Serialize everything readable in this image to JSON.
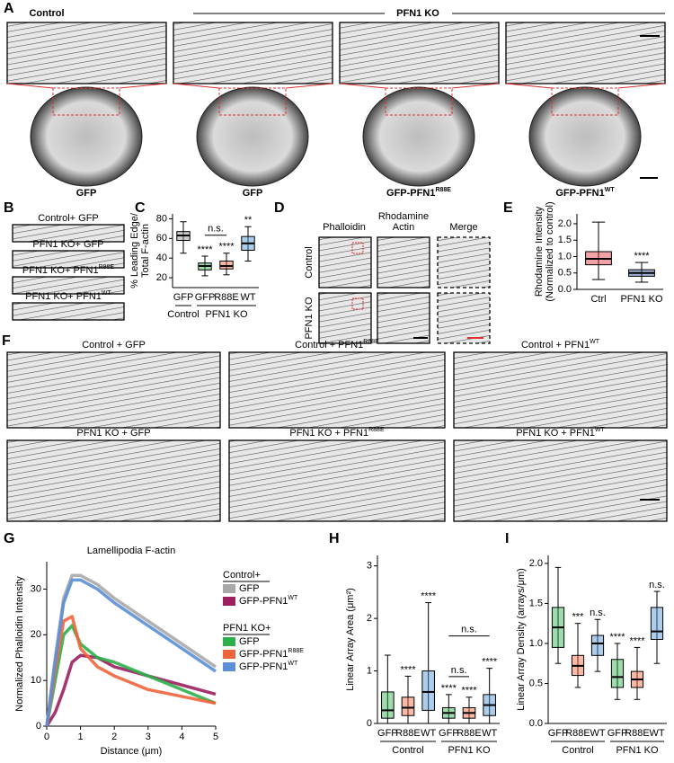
{
  "figure": {
    "A": {
      "label": "A",
      "control": "Control",
      "ko": "PFN1 KO",
      "captions": [
        {
          "text": "GFP"
        },
        {
          "text": "GFP"
        },
        {
          "text": "GFP-PFN1",
          "sup": "R88E"
        },
        {
          "text": "GFP-PFN1",
          "sup": "WT"
        }
      ]
    },
    "B": {
      "label": "B",
      "rows": [
        {
          "text": "Control+ GFP"
        },
        {
          "text": "PFN1 KO+ GFP"
        },
        {
          "text": "PFN1 KO+ PFN1",
          "sup": "R88E"
        },
        {
          "text": "PFN1 KO+ PFN1",
          "sup": "WT"
        }
      ]
    },
    "D": {
      "label": "D",
      "columns": [
        [
          "Phalloidin"
        ],
        [
          "Rhodamine",
          "Actin"
        ],
        [
          "Merge"
        ]
      ],
      "rows": [
        "Control",
        "PFN1 KO"
      ]
    },
    "F": {
      "label": "F",
      "images": [
        {
          "text": "Control + GFP"
        },
        {
          "text": "Control + PFN1",
          "sup": "R88E"
        },
        {
          "text": "Control + PFN1",
          "sup": "WT"
        },
        {
          "text": "PFN1 KO + GFP"
        },
        {
          "text": "PFN1 KO + PFN1",
          "sup": "R88E"
        },
        {
          "text": "PFN1 KO + PFN1",
          "sup": "WT"
        }
      ]
    }
  },
  "chart_data": [
    {
      "panel": "C",
      "type": "box",
      "ylabel": [
        "% Leading Edge/",
        "Total F-actin"
      ],
      "ylim": [
        10,
        85
      ],
      "yticks": [
        20,
        40,
        60,
        80
      ],
      "groups": [
        {
          "name": "Control",
          "boxes": [
            {
              "name": "GFP",
              "color": "#8c8c8c",
              "min": 45,
              "q1": 58,
              "median": 63,
              "q3": 67,
              "max": 77
            }
          ]
        },
        {
          "name": "PFN1 KO",
          "boxes": [
            {
              "name": "GFP",
              "color": "#2db04a",
              "min": 22,
              "q1": 28,
              "median": 32,
              "q3": 35,
              "max": 42,
              "sig": "****"
            },
            {
              "name": "R88E",
              "color": "#f0643c",
              "min": 23,
              "q1": 29,
              "median": 32,
              "q3": 37,
              "max": 45,
              "sig": "****"
            },
            {
              "name": "WT",
              "color": "#4a90d0",
              "min": 37,
              "q1": 48,
              "median": 55,
              "q3": 62,
              "max": 72,
              "sig": "**"
            }
          ]
        }
      ],
      "brackets": [
        {
          "label": "n.s.",
          "span": [
            1,
            2
          ]
        }
      ]
    },
    {
      "panel": "E",
      "type": "box",
      "ylabel": [
        "Rhodamine Intensity",
        "(Normalized to control)"
      ],
      "ylim": [
        0,
        2.3
      ],
      "yticks": [
        {
          "value": 0,
          "label": "0.0"
        },
        {
          "value": 0.5,
          "label": "0.5"
        },
        {
          "value": 1,
          "label": "1.0"
        },
        {
          "value": 1.5,
          "label": "1.5"
        },
        {
          "value": 2,
          "label": "2.0"
        }
      ],
      "groups": [
        {
          "boxes": [
            {
              "name": "Ctrl",
              "color": "#e0303a",
              "min": 0.3,
              "q1": 0.75,
              "median": 0.93,
              "q3": 1.15,
              "max": 2.05
            },
            {
              "name": "PFN1 KO",
              "color": "#3050a0",
              "min": 0.22,
              "q1": 0.4,
              "median": 0.5,
              "q3": 0.6,
              "max": 0.82,
              "sig": "****"
            }
          ]
        }
      ],
      "brackets": []
    },
    {
      "panel": "G",
      "type": "line",
      "title": "Lamellipodia F-actin",
      "xlabel": "Distance (μm)",
      "ylabel": "Normalized Phalloidin Intensity",
      "xlim": [
        0,
        5
      ],
      "xticks": [
        0,
        1,
        2,
        3,
        4,
        5
      ],
      "ylim": [
        0,
        36
      ],
      "yticks": [
        0,
        10,
        20,
        30
      ],
      "x": [
        0,
        0.25,
        0.5,
        0.75,
        1,
        1.5,
        2,
        3,
        4,
        5
      ],
      "series": [
        {
          "name": "GFP",
          "color": "#a8a8a8",
          "values": [
            0,
            15,
            28,
            33,
            33,
            31,
            28,
            23,
            18,
            13
          ]
        },
        {
          "name": "GFP-PFN1",
          "sup": "WT",
          "color": "#9c1f5e",
          "values": [
            0,
            3,
            8,
            14,
            15.5,
            15,
            13,
            11,
            9,
            7
          ]
        },
        {
          "name": "GFP",
          "color": "#2db04a",
          "values": [
            0,
            10,
            20,
            22,
            18,
            15,
            14,
            11,
            8,
            5
          ]
        },
        {
          "name": "GFP-PFN1",
          "sup": "R88E",
          "color": "#f0643c",
          "values": [
            0,
            12,
            23,
            24,
            17,
            13,
            11,
            8,
            6.5,
            5
          ]
        },
        {
          "name": "GFP-PFN1",
          "sup": "WT",
          "color": "#5b8fd6",
          "values": [
            0,
            14,
            27,
            32,
            32,
            30,
            27,
            22,
            17,
            12
          ]
        }
      ],
      "legend_groups": [
        {
          "name": "Control+",
          "series": [
            0,
            1
          ]
        },
        {
          "name": "PFN1 KO+",
          "series": [
            2,
            3,
            4
          ]
        }
      ]
    },
    {
      "panel": "H",
      "type": "box",
      "ylabel": [
        "Linear Array Area (μm²)"
      ],
      "ylim": [
        0,
        3.2
      ],
      "yticks": [
        0,
        1,
        2,
        3
      ],
      "groups": [
        {
          "name": "Control",
          "boxes": [
            {
              "name": "GFP",
              "color": "#2db04a",
              "min": 0,
              "q1": 0.1,
              "median": 0.25,
              "q3": 0.6,
              "max": 1.3
            },
            {
              "name": "R88E",
              "color": "#f0643c",
              "min": 0,
              "q1": 0.15,
              "median": 0.3,
              "q3": 0.5,
              "max": 0.9,
              "sig": "****"
            },
            {
              "name": "WT",
              "color": "#4a90d0",
              "min": 0,
              "q1": 0.25,
              "median": 0.6,
              "q3": 1,
              "max": 2.3,
              "sig": "****"
            }
          ]
        },
        {
          "name": "PFN1 KO",
          "boxes": [
            {
              "name": "GFP",
              "color": "#2db04a",
              "min": 0,
              "q1": 0.1,
              "median": 0.2,
              "q3": 0.3,
              "max": 0.55,
              "sig": "****"
            },
            {
              "name": "R88E",
              "color": "#f0643c",
              "min": 0,
              "q1": 0.1,
              "median": 0.2,
              "q3": 0.3,
              "max": 0.5,
              "sig": "****"
            },
            {
              "name": "WT",
              "color": "#4a90d0",
              "min": 0,
              "q1": 0.15,
              "median": 0.35,
              "q3": 0.55,
              "max": 1.05,
              "sig": "****"
            }
          ]
        }
      ],
      "brackets": [
        {
          "label": "n.s.",
          "span": [
            3,
            4
          ]
        },
        {
          "label": "n.s.",
          "span": [
            3,
            5
          ]
        }
      ]
    },
    {
      "panel": "I",
      "type": "box",
      "ylabel": [
        "Linear Array Density (arrays/μm)"
      ],
      "ylim": [
        0,
        2.1
      ],
      "yticks": [
        {
          "value": 0,
          "label": "0.0"
        },
        {
          "value": 0.5,
          "label": "0.5"
        },
        {
          "value": 1,
          "label": "1.0"
        },
        {
          "value": 1.5,
          "label": "1.5"
        },
        {
          "value": 2,
          "label": "2.0"
        }
      ],
      "groups": [
        {
          "name": "Control",
          "boxes": [
            {
              "name": "GFP",
              "color": "#2db04a",
              "min": 0.75,
              "q1": 0.95,
              "median": 1.2,
              "q3": 1.45,
              "max": 1.95
            },
            {
              "name": "R88E",
              "color": "#f0643c",
              "min": 0.45,
              "q1": 0.6,
              "median": 0.72,
              "q3": 0.85,
              "max": 1.25,
              "sig": "***"
            },
            {
              "name": "WT",
              "color": "#4a90d0",
              "min": 0.65,
              "q1": 0.85,
              "median": 1,
              "q3": 1.1,
              "max": 1.3,
              "sig": "n.s."
            }
          ]
        },
        {
          "name": "PFN1 KO",
          "boxes": [
            {
              "name": "GFP",
              "color": "#2db04a",
              "min": 0.3,
              "q1": 0.45,
              "median": 0.58,
              "q3": 0.8,
              "max": 1,
              "sig": "****"
            },
            {
              "name": "R88E",
              "color": "#f0643c",
              "min": 0.3,
              "q1": 0.45,
              "median": 0.55,
              "q3": 0.65,
              "max": 0.95,
              "sig": "****"
            },
            {
              "name": "WT",
              "color": "#4a90d0",
              "min": 0.75,
              "q1": 1.05,
              "median": 1.15,
              "q3": 1.45,
              "max": 1.65,
              "sig": "n.s."
            }
          ]
        }
      ],
      "brackets": []
    }
  ]
}
